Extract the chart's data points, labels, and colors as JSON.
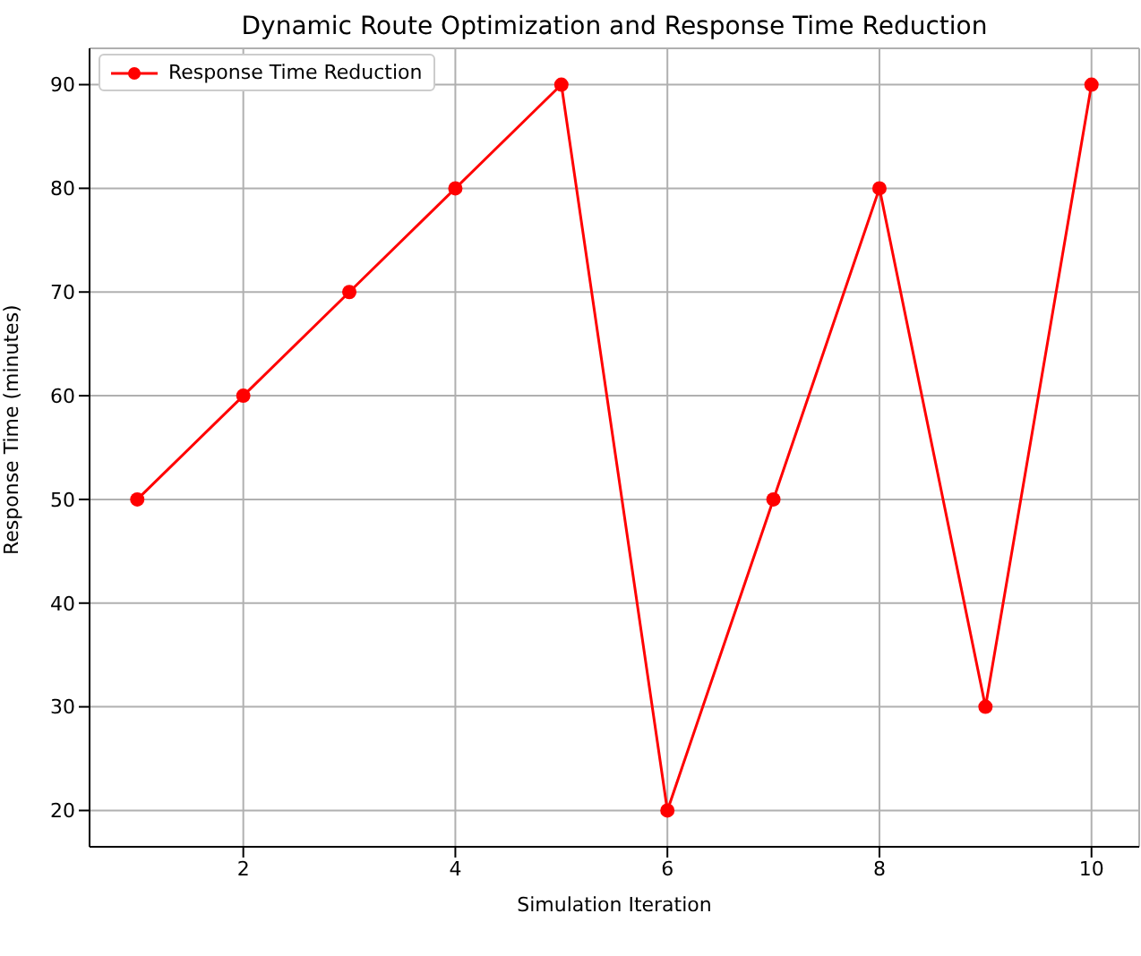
{
  "chart_data": {
    "type": "line",
    "title": "Dynamic Route Optimization and Response Time Reduction",
    "xlabel": "Simulation Iteration",
    "ylabel": "Response Time (minutes)",
    "x": [
      1,
      2,
      3,
      4,
      5,
      6,
      7,
      8,
      9,
      10
    ],
    "series": [
      {
        "name": "Response Time Reduction",
        "color": "#ff0000",
        "values": [
          50,
          60,
          70,
          80,
          90,
          20,
          50,
          80,
          30,
          90
        ]
      }
    ],
    "xlim": [
      0.55,
      10.45
    ],
    "xticks": [
      2,
      4,
      6,
      8,
      10
    ],
    "ylim": [
      16.5,
      93.5
    ],
    "yticks": [
      20,
      30,
      40,
      50,
      60,
      70,
      80,
      90
    ],
    "grid": true,
    "legend": "top left",
    "marker": "circle",
    "line_style": "solid"
  }
}
